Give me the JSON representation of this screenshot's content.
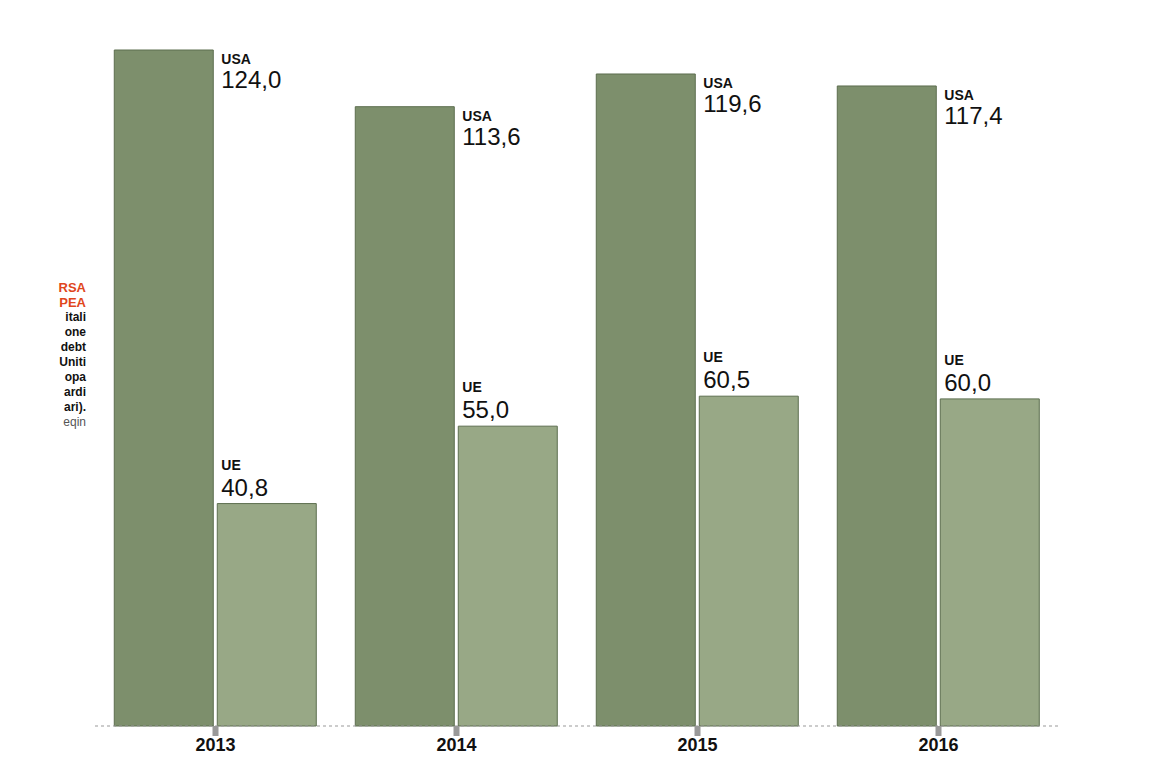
{
  "chart_data": {
    "type": "bar",
    "categories": [
      "2013",
      "2014",
      "2015",
      "2016"
    ],
    "series": [
      {
        "name": "USA",
        "color": "#7d8f6c",
        "values": [
          124.0,
          113.6,
          119.6,
          117.4
        ],
        "value_labels": [
          "124,0",
          "113,6",
          "119,6",
          "117,4"
        ]
      },
      {
        "name": "UE",
        "color": "#98a886",
        "values": [
          40.8,
          55.0,
          60.5,
          60.0
        ],
        "value_labels": [
          "40,8",
          "55,0",
          "60,5",
          "60,0"
        ]
      }
    ],
    "data_labels": true,
    "tick_labels": "x",
    "grid": false,
    "side_note": {
      "heading": [
        "RSA",
        "PEA"
      ],
      "lines": [
        "itali",
        "one",
        "debt",
        "Uniti",
        "opa",
        "ardi",
        "ari)."
      ],
      "source": "eqin"
    }
  }
}
